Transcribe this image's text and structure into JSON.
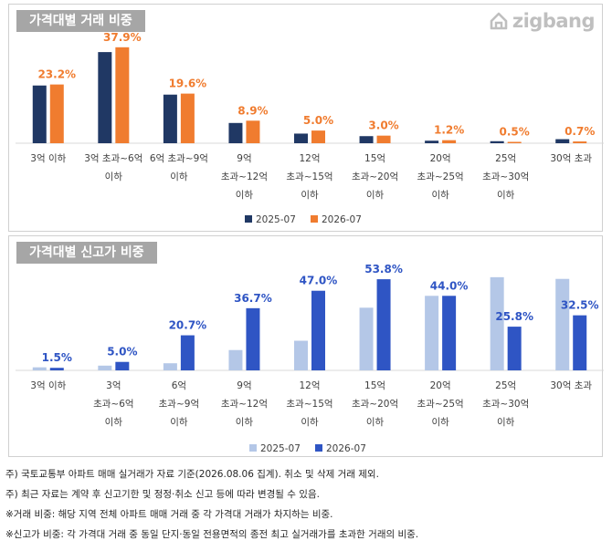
{
  "logo": {
    "text": "zigbang",
    "icon": "zigbang-house-icon"
  },
  "chart_data": [
    {
      "type": "bar",
      "title": "가격대별 거래 비중",
      "categories": [
        [
          "3억 이하"
        ],
        [
          "3억 초과~6억",
          "이하"
        ],
        [
          "6억 초과~9억",
          "이하"
        ],
        [
          "9억",
          "초과~12억",
          "이하"
        ],
        [
          "12억",
          "초과~15억",
          "이하"
        ],
        [
          "15억",
          "초과~20억",
          "이하"
        ],
        [
          "20억",
          "초과~25억",
          "이하"
        ],
        [
          "25억",
          "초과~30억",
          "이하"
        ],
        [
          "30억 초과"
        ]
      ],
      "series": [
        {
          "name": "2025-07",
          "color": "#203864",
          "values": [
            22.8,
            36.0,
            19.2,
            8.0,
            3.8,
            2.8,
            1.0,
            0.8,
            1.6
          ]
        },
        {
          "name": "2026-07",
          "color": "#f07c2f",
          "values": [
            23.2,
            37.9,
            19.6,
            8.9,
            5.0,
            3.0,
            1.2,
            0.5,
            0.7
          ],
          "labels": [
            "23.2%",
            "37.9%",
            "19.6%",
            "8.9%",
            "5.0%",
            "3.0%",
            "1.2%",
            "0.5%",
            "0.7%"
          ]
        }
      ],
      "ylim": [
        0,
        40
      ],
      "legend_position": "bottom",
      "grid": false
    },
    {
      "type": "bar",
      "title": "가격대별 신고가 비중",
      "categories": [
        [
          "3억 이하"
        ],
        [
          "3억",
          "초과~6억",
          "이하"
        ],
        [
          "6억",
          "초과~9억",
          "이하"
        ],
        [
          "9억",
          "초과~12억",
          "이하"
        ],
        [
          "12억",
          "초과~15억",
          "이하"
        ],
        [
          "15억",
          "초과~20억",
          "이하"
        ],
        [
          "20억",
          "초과~25억",
          "이하"
        ],
        [
          "25억",
          "초과~30억",
          "이하"
        ],
        [
          "30억 초과"
        ]
      ],
      "series": [
        {
          "name": "2025-07",
          "color": "#b4c7e7",
          "values": [
            1.8,
            2.8,
            4.2,
            12.0,
            17.5,
            37.0,
            44.0,
            55.0,
            54.0
          ]
        },
        {
          "name": "2026-07",
          "color": "#2f55c4",
          "values": [
            1.5,
            5.0,
            20.7,
            36.7,
            47.0,
            53.8,
            44.0,
            25.8,
            32.5
          ],
          "labels": [
            "1.5%",
            "5.0%",
            "20.7%",
            "36.7%",
            "47.0%",
            "53.8%",
            "44.0%",
            "25.8%",
            "32.5%"
          ]
        }
      ],
      "ylim": [
        0,
        56
      ],
      "legend_position": "bottom",
      "grid": false
    }
  ],
  "notes": [
    "주) 국토교통부 아파트 매매 실거래가 자료 기준(2026.08.06 집계). 취소 및 삭제 거래 제외.",
    "주) 최근 자료는 계약 후 신고기한 및 정정·취소 신고 등에 따라 변경될 수 있음.",
    "※거래 비중: 해당 지역 전체 아파트 매매 거래 중 각 가격대 거래가 차지하는 비중.",
    "※신고가 비중: 각 가격대 거래 중 동일 단지·동일 전용면적의 종전 최고 실거래가를 초과한 거래의 비중."
  ]
}
